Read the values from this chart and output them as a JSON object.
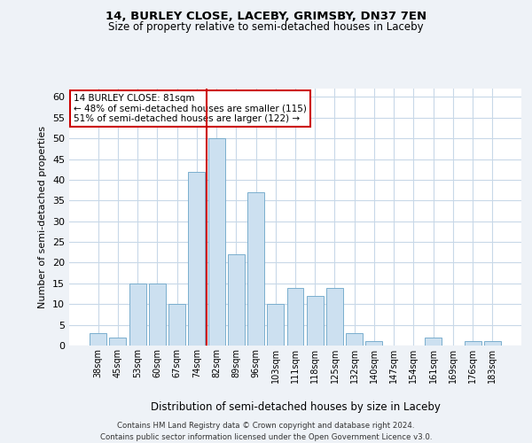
{
  "title1": "14, BURLEY CLOSE, LACEBY, GRIMSBY, DN37 7EN",
  "title2": "Size of property relative to semi-detached houses in Laceby",
  "xlabel": "Distribution of semi-detached houses by size in Laceby",
  "ylabel": "Number of semi-detached properties",
  "categories": [
    "38sqm",
    "45sqm",
    "53sqm",
    "60sqm",
    "67sqm",
    "74sqm",
    "82sqm",
    "89sqm",
    "96sqm",
    "103sqm",
    "111sqm",
    "118sqm",
    "125sqm",
    "132sqm",
    "140sqm",
    "147sqm",
    "154sqm",
    "161sqm",
    "169sqm",
    "176sqm",
    "183sqm"
  ],
  "values": [
    3,
    2,
    15,
    15,
    10,
    42,
    50,
    22,
    37,
    10,
    14,
    12,
    14,
    3,
    1,
    0,
    0,
    2,
    0,
    1,
    1
  ],
  "bar_color": "#cce0f0",
  "bar_edge_color": "#7aaece",
  "vline_color": "#cc0000",
  "vline_x": 6,
  "annotation_line1": "14 BURLEY CLOSE: 81sqm",
  "annotation_line2": "← 48% of semi-detached houses are smaller (115)",
  "annotation_line3": "51% of semi-detached houses are larger (122) →",
  "annotation_box_color": "#ffffff",
  "annotation_box_edge": "#cc0000",
  "ylim": [
    0,
    62
  ],
  "yticks": [
    0,
    5,
    10,
    15,
    20,
    25,
    30,
    35,
    40,
    45,
    50,
    55,
    60
  ],
  "footnote": "Contains HM Land Registry data © Crown copyright and database right 2024.\nContains public sector information licensed under the Open Government Licence v3.0.",
  "bg_color": "#eef2f7",
  "plot_bg_color": "#ffffff",
  "grid_color": "#c8d8e8"
}
